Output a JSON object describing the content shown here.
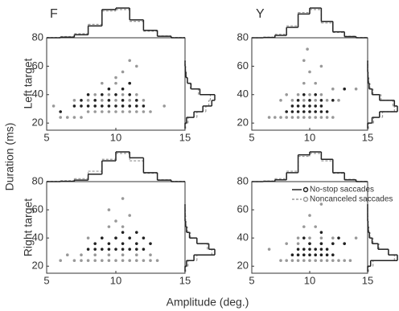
{
  "figure": {
    "xlabel": "Amplitude (deg.)",
    "ylabel": "Duration (ms)",
    "columns": [
      "F",
      "Y"
    ],
    "rows": [
      "Left target",
      "Right target"
    ]
  },
  "chart_data": [
    {
      "type": "scatter",
      "xlim": [
        5,
        15
      ],
      "ylim": [
        15,
        80
      ],
      "xticks": [
        5,
        10,
        15
      ],
      "yticks": [
        20,
        40,
        60,
        80
      ],
      "series": [
        {
          "color": "#222222",
          "x": [
            7,
            7.5,
            8,
            8.5,
            9,
            9.5,
            10,
            10.5,
            11,
            11.5,
            12,
            7.5,
            8.5,
            9.5,
            10.5,
            11.5,
            8,
            9,
            10,
            11,
            9.5,
            10.5,
            11,
            6
          ],
          "y": [
            32,
            32,
            32,
            32,
            32,
            32,
            32,
            32,
            32,
            32,
            32,
            36,
            36,
            36,
            36,
            36,
            40,
            40,
            40,
            40,
            44,
            44,
            48,
            28
          ]
        },
        {
          "color": "#999999",
          "x": [
            6,
            6.5,
            7,
            7.5,
            8,
            8.5,
            9,
            9.5,
            10,
            10.5,
            11,
            11.5,
            12,
            12.5,
            7,
            8,
            9,
            10,
            11,
            12,
            8.5,
            9.5,
            10.5,
            11.5,
            9,
            10,
            11,
            10.5,
            11.5,
            5.5,
            13.5,
            10,
            11
          ],
          "y": [
            24,
            24,
            24,
            24,
            28,
            28,
            28,
            28,
            28,
            28,
            28,
            28,
            28,
            28,
            36,
            36,
            36,
            36,
            36,
            36,
            40,
            40,
            40,
            40,
            48,
            48,
            48,
            56,
            60,
            32,
            32,
            52,
            64
          ]
        }
      ],
      "x_hist": {
        "bins": [
          5,
          6,
          7,
          8,
          9,
          10,
          11,
          12,
          13,
          14,
          15
        ],
        "series": [
          {
            "counts": [
              0,
              2,
              10,
              40,
              95,
              100,
              60,
              25,
              5,
              0
            ]
          },
          {
            "counts": [
              1,
              4,
              14,
              45,
              90,
              95,
              55,
              22,
              6,
              1
            ]
          }
        ]
      },
      "y_hist": {
        "bins": [
          16,
          20,
          24,
          28,
          32,
          36,
          40,
          44,
          48,
          52,
          56,
          60,
          64
        ],
        "series": [
          {
            "counts": [
              0,
              5,
              30,
              60,
              90,
              100,
              50,
              20,
              8,
              3,
              1,
              0
            ]
          },
          {
            "counts": [
              2,
              10,
              40,
              70,
              80,
              85,
              45,
              18,
              8,
              4,
              2,
              1
            ]
          }
        ]
      }
    },
    {
      "type": "scatter",
      "xlim": [
        5,
        15
      ],
      "ylim": [
        15,
        80
      ],
      "xticks": [
        5,
        10,
        15
      ],
      "yticks": [
        20,
        40,
        60,
        80
      ],
      "series": [
        {
          "color": "#222222",
          "x": [
            8,
            8.5,
            9,
            9.5,
            10,
            10.5,
            11,
            11.5,
            8.5,
            9,
            9.5,
            10,
            10.5,
            11,
            9,
            10,
            11,
            12,
            9.5,
            10.5,
            13
          ],
          "y": [
            28,
            28,
            28,
            28,
            28,
            28,
            28,
            28,
            32,
            32,
            32,
            32,
            32,
            32,
            36,
            36,
            36,
            36,
            40,
            40,
            44
          ]
        },
        {
          "color": "#999999",
          "x": [
            6.5,
            7,
            7.5,
            8,
            8.5,
            9,
            9.5,
            10,
            10.5,
            11,
            11.5,
            12,
            7.5,
            8.5,
            9.5,
            10.5,
            11.5,
            12.5,
            8,
            9,
            10,
            11,
            9.5,
            10.5,
            10,
            11,
            9.5,
            9.8,
            12,
            14
          ],
          "y": [
            24,
            24,
            24,
            24,
            24,
            24,
            24,
            24,
            24,
            24,
            24,
            24,
            36,
            36,
            36,
            36,
            36,
            36,
            40,
            40,
            40,
            40,
            48,
            48,
            56,
            60,
            64,
            72,
            44,
            44
          ]
        }
      ],
      "x_hist": {
        "bins": [
          5,
          6,
          7,
          8,
          9,
          10,
          11,
          12,
          13,
          14,
          15
        ],
        "series": [
          {
            "counts": [
              0,
              1,
              8,
              35,
              80,
              100,
              55,
              20,
              4,
              0
            ]
          },
          {
            "counts": [
              0,
              2,
              12,
              40,
              85,
              95,
              50,
              18,
              5,
              1
            ]
          }
        ]
      },
      "y_hist": {
        "bins": [
          16,
          20,
          24,
          28,
          32,
          36,
          40,
          44,
          48,
          52,
          56,
          60,
          64
        ],
        "series": [
          {
            "counts": [
              0,
              15,
              40,
              100,
              90,
              40,
              15,
              5,
              2,
              1,
              0,
              0
            ]
          },
          {
            "counts": [
              3,
              20,
              50,
              90,
              85,
              45,
              18,
              8,
              4,
              2,
              1,
              1
            ]
          }
        ]
      }
    },
    {
      "type": "scatter",
      "xlim": [
        5,
        15
      ],
      "ylim": [
        15,
        80
      ],
      "xticks": [
        5,
        10,
        15
      ],
      "yticks": [
        20,
        40,
        60,
        80
      ],
      "series": [
        {
          "color": "#222222",
          "x": [
            8,
            8.5,
            9,
            9.5,
            10,
            10.5,
            11,
            11.5,
            12,
            8.5,
            9.5,
            10.5,
            11.5,
            12.5,
            9,
            10,
            11,
            12,
            10.5,
            11.5
          ],
          "y": [
            32,
            32,
            32,
            32,
            32,
            32,
            32,
            32,
            32,
            36,
            36,
            36,
            36,
            36,
            40,
            40,
            40,
            40,
            44,
            44
          ]
        },
        {
          "color": "#999999",
          "x": [
            7,
            7.5,
            8,
            8.5,
            9,
            9.5,
            10,
            10.5,
            11,
            11.5,
            12,
            12.5,
            13,
            6.5,
            7.5,
            8.5,
            9.5,
            10.5,
            11.5,
            12.5,
            8,
            9,
            10,
            11,
            9.5,
            10.5,
            10,
            11,
            9.5,
            10.5,
            6
          ],
          "y": [
            24,
            24,
            24,
            24,
            24,
            24,
            24,
            24,
            24,
            24,
            24,
            24,
            24,
            28,
            28,
            28,
            28,
            28,
            28,
            28,
            40,
            40,
            40,
            40,
            48,
            48,
            52,
            56,
            60,
            68,
            24
          ]
        }
      ],
      "x_hist": {
        "bins": [
          5,
          6,
          7,
          8,
          9,
          10,
          11,
          12,
          13,
          14,
          15
        ],
        "series": [
          {
            "counts": [
              0,
              1,
              5,
              25,
              70,
              100,
              80,
              30,
              5,
              0
            ]
          },
          {
            "counts": [
              1,
              3,
              10,
              35,
              75,
              95,
              70,
              28,
              6,
              1
            ]
          }
        ]
      },
      "y_hist": {
        "bins": [
          16,
          20,
          24,
          28,
          32,
          36,
          40,
          44,
          48,
          52,
          56,
          60,
          64
        ],
        "series": [
          {
            "counts": [
              0,
              5,
              30,
              100,
              80,
              40,
              15,
              5,
              2,
              0,
              0,
              0
            ]
          },
          {
            "counts": [
              2,
              10,
              40,
              90,
              75,
              40,
              18,
              8,
              3,
              2,
              1,
              0
            ]
          }
        ]
      }
    },
    {
      "type": "scatter",
      "xlim": [
        5,
        15
      ],
      "ylim": [
        15,
        80
      ],
      "xticks": [
        5,
        10,
        15
      ],
      "yticks": [
        20,
        40,
        60,
        80
      ],
      "legend": "upper right",
      "series": [
        {
          "name": "No-stop saccades",
          "color": "#222222",
          "x": [
            8.5,
            9,
            9.5,
            10,
            10.5,
            11,
            11.5,
            12,
            9,
            9.5,
            10,
            10.5,
            11,
            11.5,
            10,
            11,
            12,
            13,
            9.5,
            12.5,
            11
          ],
          "y": [
            28,
            28,
            28,
            28,
            28,
            28,
            28,
            28,
            32,
            32,
            32,
            32,
            32,
            32,
            36,
            36,
            36,
            36,
            40,
            40,
            44
          ]
        },
        {
          "name": "Noncanceled saccades",
          "color": "#999999",
          "x": [
            7.5,
            8,
            8.5,
            9,
            9.5,
            10,
            10.5,
            11,
            11.5,
            12,
            12.5,
            13,
            13.5,
            8,
            9,
            10,
            11,
            12,
            13,
            9,
            10,
            11,
            12,
            9.5,
            10.5,
            10,
            11,
            6.5,
            14
          ],
          "y": [
            24,
            24,
            24,
            24,
            24,
            24,
            24,
            24,
            24,
            24,
            24,
            24,
            24,
            36,
            36,
            36,
            36,
            36,
            36,
            40,
            40,
            40,
            40,
            48,
            48,
            56,
            64,
            32,
            40
          ]
        }
      ],
      "x_hist": {
        "bins": [
          5,
          6,
          7,
          8,
          9,
          10,
          11,
          12,
          13,
          14,
          15
        ],
        "series": [
          {
            "counts": [
              0,
              1,
              6,
              30,
              90,
              100,
              75,
              30,
              6,
              0
            ]
          },
          {
            "counts": [
              0,
              2,
              10,
              35,
              85,
              95,
              70,
              28,
              8,
              1
            ]
          }
        ]
      },
      "y_hist": {
        "bins": [
          16,
          20,
          24,
          28,
          32,
          36,
          40,
          44,
          48,
          52,
          56,
          60,
          64
        ],
        "series": [
          {
            "counts": [
              0,
              10,
              100,
              70,
              35,
              15,
              6,
              2,
              1,
              0,
              0,
              0
            ]
          },
          {
            "counts": [
              3,
              18,
              90,
              70,
              38,
              18,
              8,
              4,
              2,
              1,
              0,
              0
            ]
          }
        ]
      }
    }
  ]
}
